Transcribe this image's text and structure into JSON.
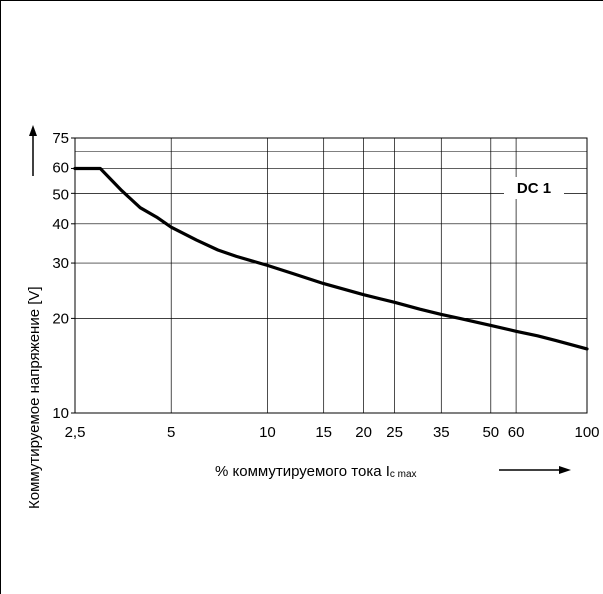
{
  "chart_data": {
    "type": "line",
    "x_scale": "log",
    "y_scale": "log",
    "xlim": [
      2.5,
      100
    ],
    "ylim": [
      10,
      75
    ],
    "x_ticks": [
      2.5,
      5,
      10,
      15,
      20,
      25,
      35,
      50,
      60,
      100
    ],
    "x_tick_labels": [
      "2,5",
      "5",
      "10",
      "15",
      "20",
      "25",
      "35",
      "50",
      "60",
      "100"
    ],
    "y_ticks": [
      10,
      20,
      30,
      40,
      50,
      60,
      75
    ],
    "y_tick_labels": [
      "10",
      "20",
      "30",
      "40",
      "50",
      "60",
      "75"
    ],
    "grid": true,
    "xlabel": "% коммутируемого тока I",
    "xlabel_sub": "c max",
    "ylabel": "Коммутируемое напряжение [V]",
    "annotation": "DC 1",
    "series": [
      {
        "x": [
          2.5,
          3.0,
          3.5,
          4.0,
          4.5,
          5.0,
          6.0,
          7.0,
          8.0,
          10,
          12,
          15,
          20,
          25,
          30,
          35,
          40,
          50,
          60,
          70,
          80,
          100
        ],
        "y": [
          60,
          60,
          51,
          45,
          42,
          39,
          35.5,
          33,
          31.5,
          29.5,
          27.8,
          25.8,
          23.8,
          22.5,
          21.4,
          20.6,
          20,
          19,
          18.2,
          17.6,
          17,
          16
        ]
      }
    ]
  }
}
